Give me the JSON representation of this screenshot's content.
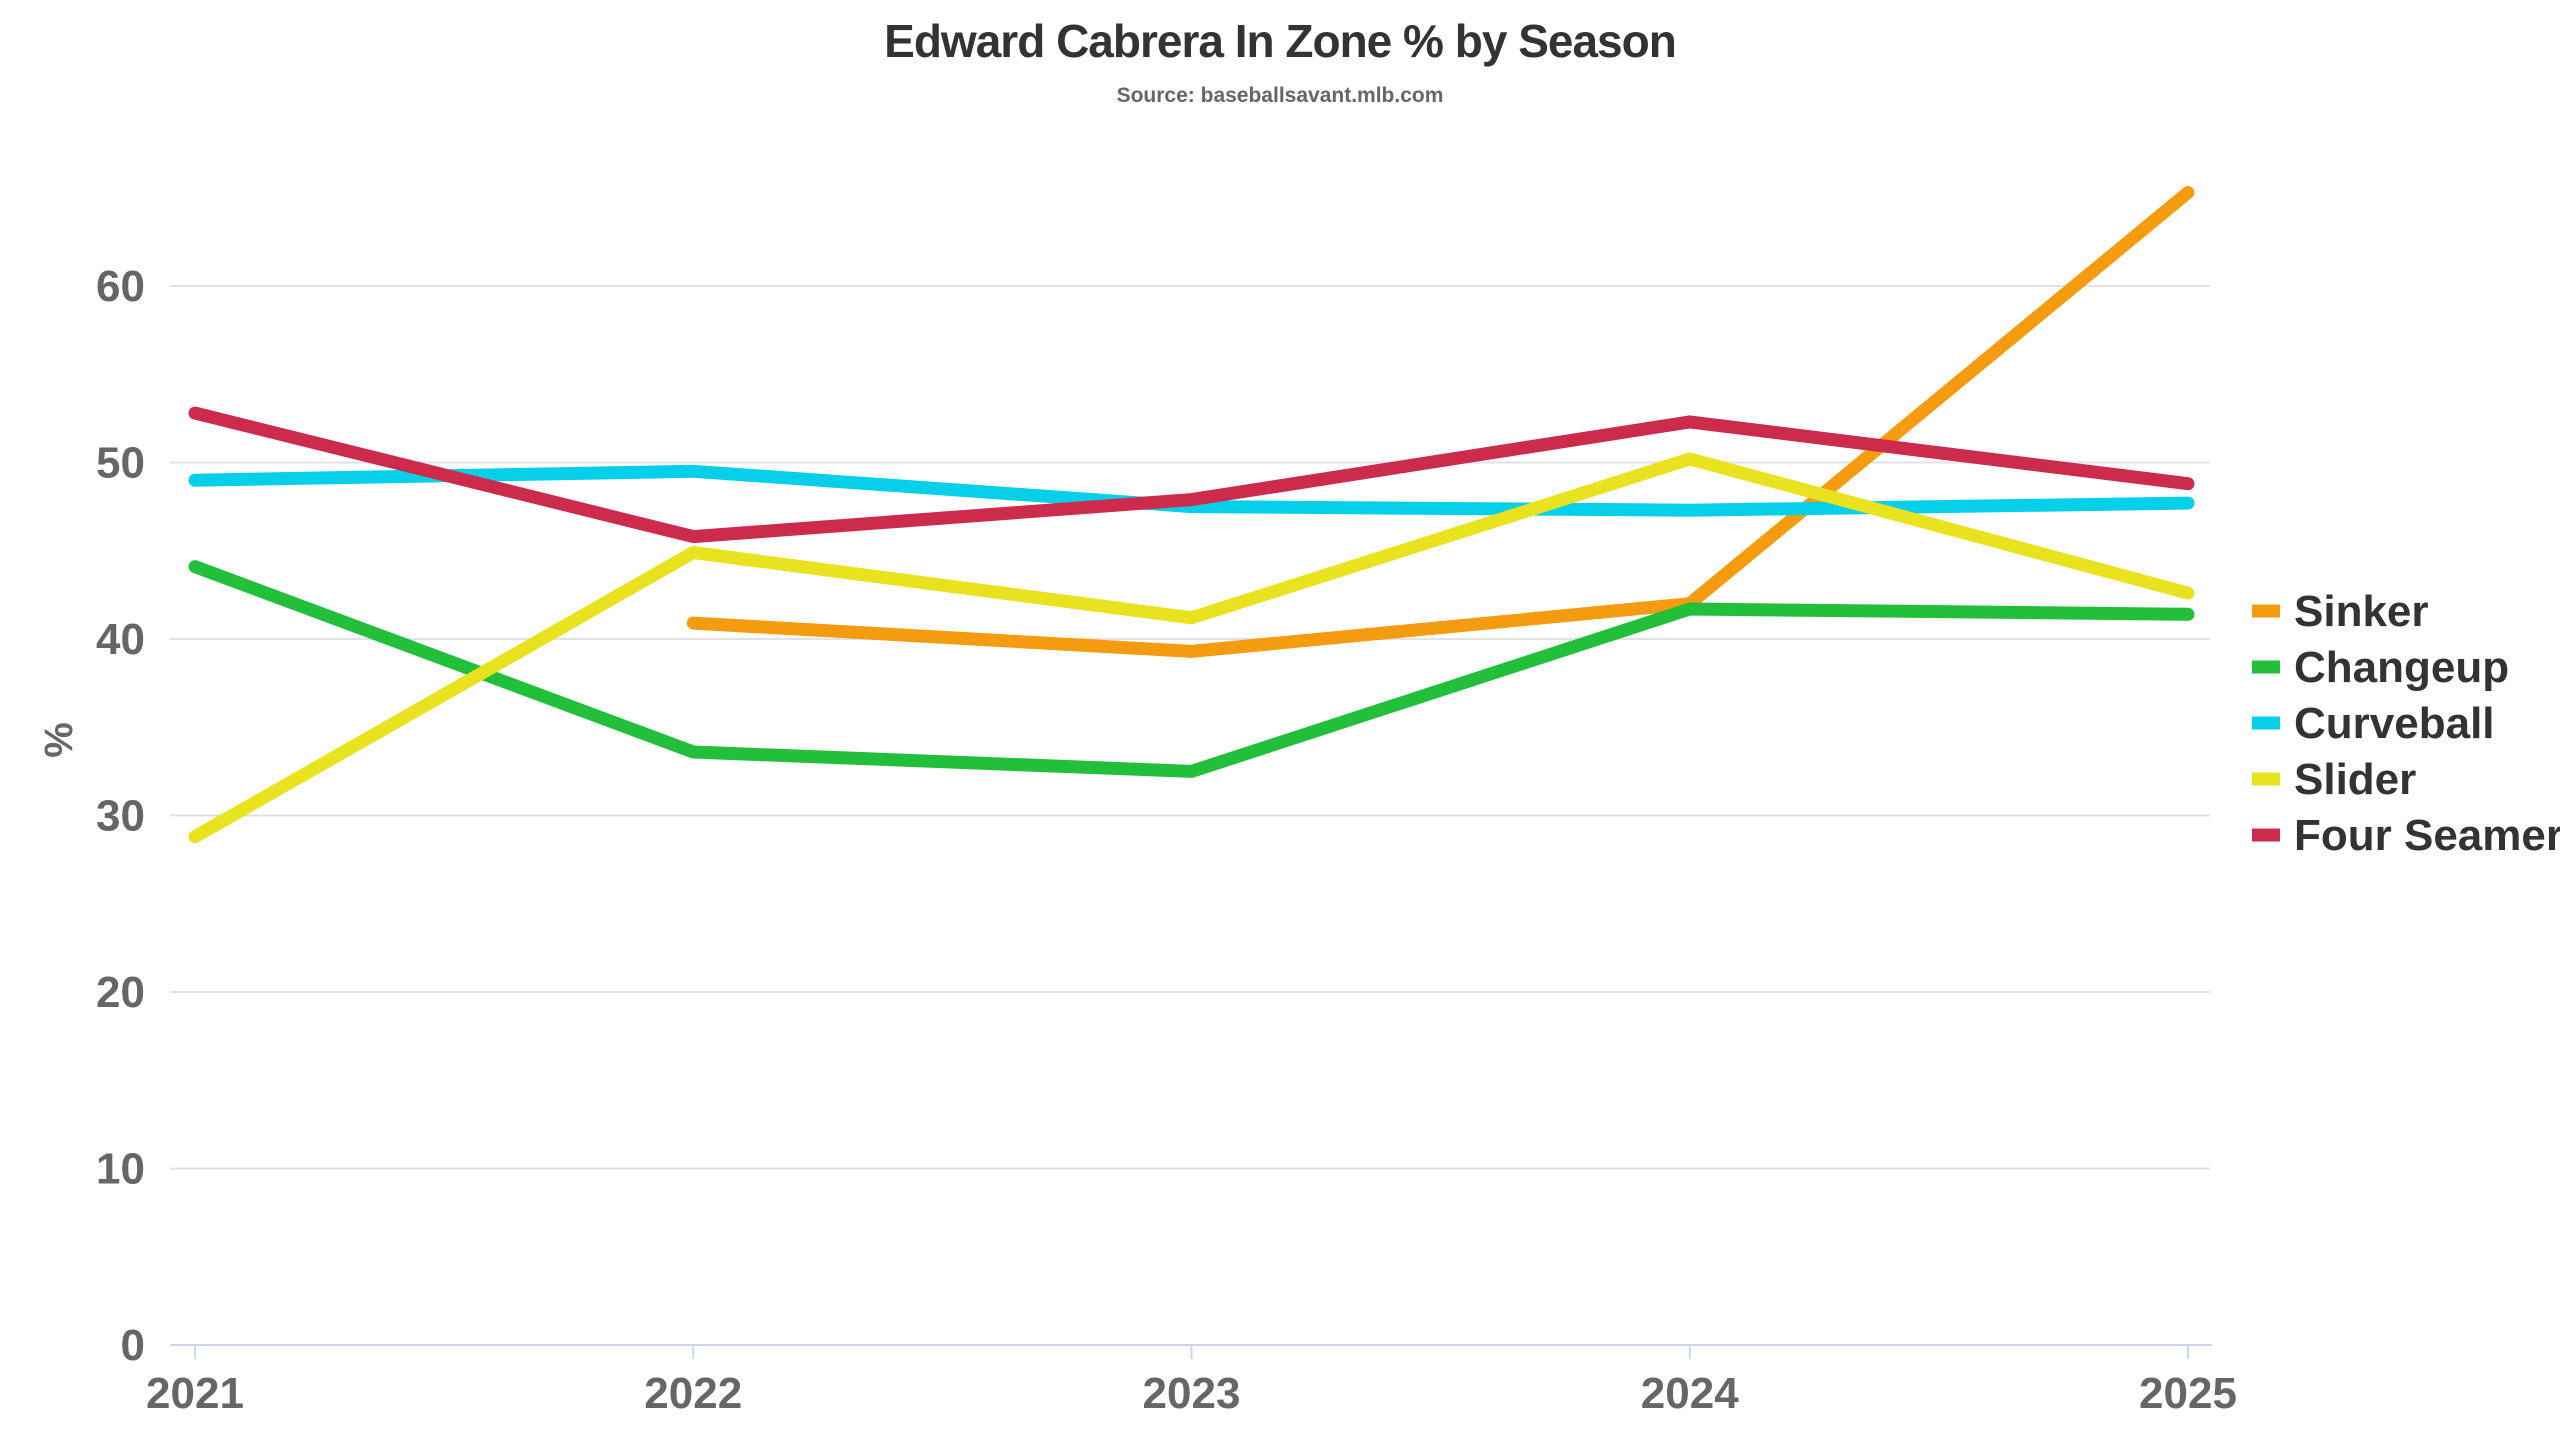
{
  "chart_data": {
    "type": "line",
    "title": "Edward Cabrera In Zone % by Season",
    "subtitle": "Source: baseballsavant.mlb.com",
    "xlabel": "",
    "ylabel": "%",
    "x": [
      "2021",
      "2022",
      "2023",
      "2024",
      "2025"
    ],
    "ylim": [
      0,
      68
    ],
    "yticks": [
      0,
      10,
      20,
      30,
      40,
      50,
      60
    ],
    "grid": true,
    "legend_position": "right",
    "series": [
      {
        "name": "Sinker",
        "color": "#f59b0f",
        "values": [
          null,
          40.9,
          39.3,
          42.0,
          65.3
        ]
      },
      {
        "name": "Changeup",
        "color": "#21bf3a",
        "values": [
          44.1,
          33.6,
          32.5,
          41.7,
          41.4
        ]
      },
      {
        "name": "Curveball",
        "color": "#06cfe9",
        "values": [
          49.0,
          49.5,
          47.5,
          47.3,
          47.7
        ]
      },
      {
        "name": "Slider",
        "color": "#e8e21f",
        "values": [
          28.8,
          44.9,
          41.2,
          50.2,
          42.6
        ]
      },
      {
        "name": "Four Seamer",
        "color": "#cc2b4b",
        "values": [
          52.8,
          45.8,
          47.9,
          52.3,
          48.8
        ]
      }
    ]
  }
}
